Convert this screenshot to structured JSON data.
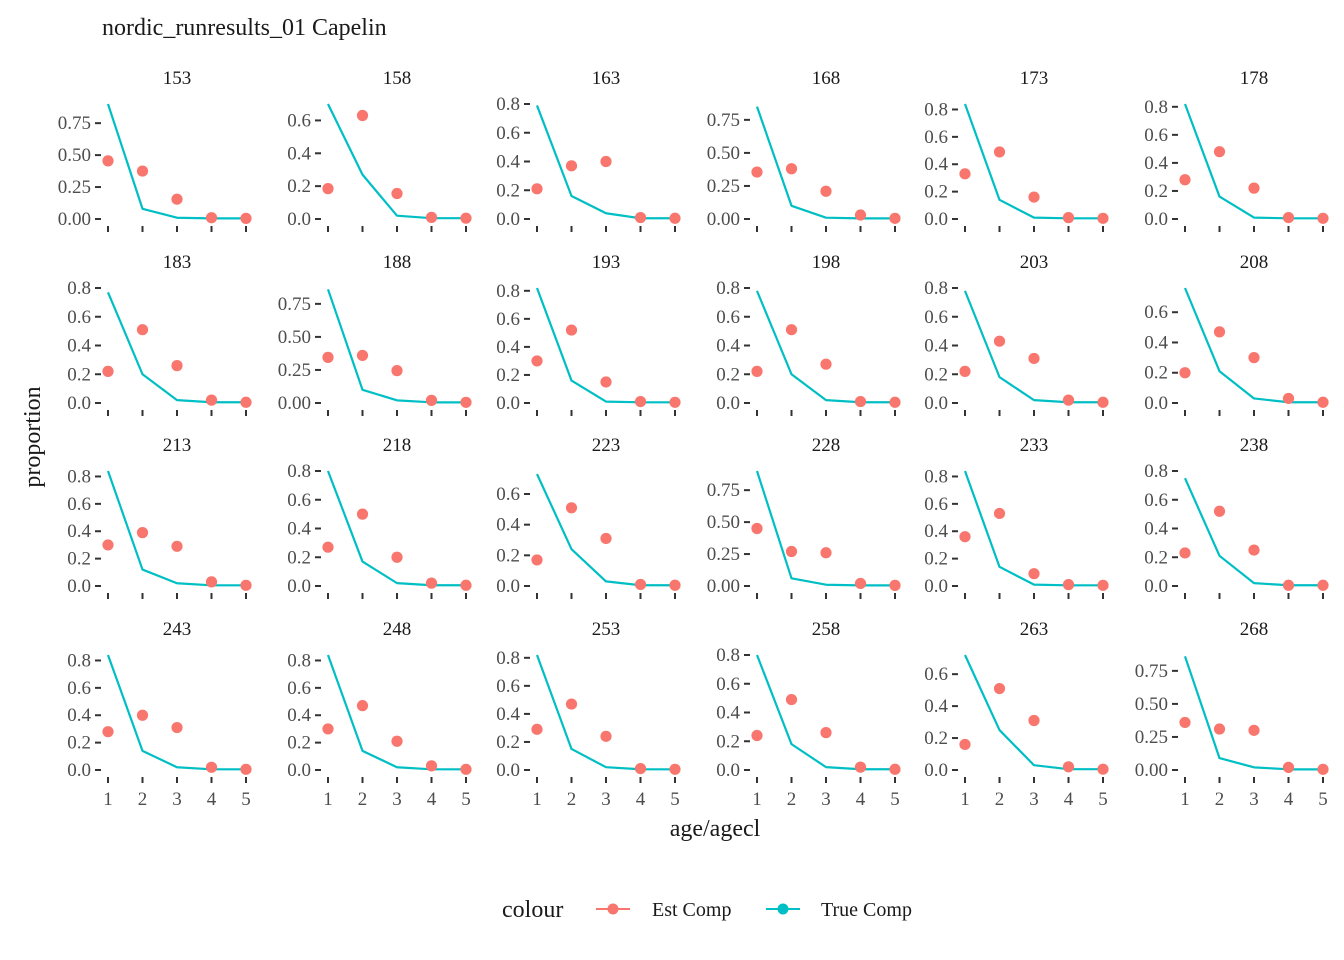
{
  "chart_data": {
    "type": "line",
    "title": "nordic_runresults_01 Capelin",
    "xlabel": "age/agecl",
    "ylabel": "proportion",
    "x": [
      1,
      2,
      3,
      4,
      5
    ],
    "x_ticks": [
      "1",
      "2",
      "3",
      "4",
      "5"
    ],
    "layout": {
      "rows": 4,
      "cols": 6,
      "scales": "free_y"
    },
    "grid": false,
    "legend": {
      "title": "colour",
      "placement": "bottom",
      "entries": [
        {
          "name": "Est Comp",
          "color": "#F8766D",
          "mark": "point"
        },
        {
          "name": "True Comp",
          "color": "#00BFC4",
          "mark": "line"
        }
      ]
    },
    "series_colors": {
      "est": "#F8766D",
      "true": "#00BFC4"
    },
    "panels": [
      {
        "label": "153",
        "ylim": [
          0,
          0.9
        ],
        "yticks": [
          "0.00",
          "0.25",
          "0.50",
          "0.75"
        ],
        "ytick_values": [
          0,
          0.25,
          0.5,
          0.75
        ],
        "est": [
          0.455,
          0.375,
          0.155,
          0.01,
          0.005
        ],
        "true": [
          0.9,
          0.08,
          0.01,
          0.005,
          0.005
        ]
      },
      {
        "label": "158",
        "ylim": [
          0,
          0.7
        ],
        "yticks": [
          "0.0",
          "0.2",
          "0.4",
          "0.6"
        ],
        "ytick_values": [
          0,
          0.2,
          0.4,
          0.6
        ],
        "est": [
          0.185,
          0.63,
          0.155,
          0.01,
          0.005
        ],
        "true": [
          0.7,
          0.27,
          0.02,
          0.005,
          0.005
        ]
      },
      {
        "label": "163",
        "ylim": [
          0,
          0.8
        ],
        "yticks": [
          "0.0",
          "0.2",
          "0.4",
          "0.6",
          "0.8"
        ],
        "ytick_values": [
          0,
          0.2,
          0.4,
          0.6,
          0.8
        ],
        "est": [
          0.21,
          0.37,
          0.4,
          0.01,
          0.005
        ],
        "true": [
          0.79,
          0.16,
          0.04,
          0.005,
          0.005
        ]
      },
      {
        "label": "168",
        "ylim": [
          0,
          0.87
        ],
        "yticks": [
          "0.00",
          "0.25",
          "0.50",
          "0.75"
        ],
        "ytick_values": [
          0,
          0.25,
          0.5,
          0.75
        ],
        "est": [
          0.355,
          0.38,
          0.21,
          0.03,
          0.005
        ],
        "true": [
          0.85,
          0.1,
          0.01,
          0.005,
          0.005
        ]
      },
      {
        "label": "173",
        "ylim": [
          0,
          0.84
        ],
        "yticks": [
          "0.0",
          "0.2",
          "0.4",
          "0.6",
          "0.8"
        ],
        "ytick_values": [
          0,
          0.2,
          0.4,
          0.6,
          0.8
        ],
        "est": [
          0.33,
          0.49,
          0.16,
          0.01,
          0.005
        ],
        "true": [
          0.84,
          0.14,
          0.01,
          0.005,
          0.005
        ]
      },
      {
        "label": "178",
        "ylim": [
          0,
          0.82
        ],
        "yticks": [
          "0.0",
          "0.2",
          "0.4",
          "0.6",
          "0.8"
        ],
        "ytick_values": [
          0,
          0.2,
          0.4,
          0.6,
          0.8
        ],
        "est": [
          0.28,
          0.48,
          0.22,
          0.01,
          0.005
        ],
        "true": [
          0.82,
          0.16,
          0.01,
          0.005,
          0.005
        ]
      },
      {
        "label": "183",
        "ylim": [
          0,
          0.8
        ],
        "yticks": [
          "0.0",
          "0.2",
          "0.4",
          "0.6",
          "0.8"
        ],
        "ytick_values": [
          0,
          0.2,
          0.4,
          0.6,
          0.8
        ],
        "est": [
          0.22,
          0.51,
          0.26,
          0.02,
          0.005
        ],
        "true": [
          0.77,
          0.2,
          0.02,
          0.005,
          0.005
        ]
      },
      {
        "label": "188",
        "ylim": [
          0,
          0.87
        ],
        "yticks": [
          "0.00",
          "0.25",
          "0.50",
          "0.75"
        ],
        "ytick_values": [
          0,
          0.25,
          0.5,
          0.75
        ],
        "est": [
          0.345,
          0.36,
          0.245,
          0.02,
          0.005
        ],
        "true": [
          0.86,
          0.1,
          0.02,
          0.005,
          0.005
        ]
      },
      {
        "label": "193",
        "ylim": [
          0,
          0.82
        ],
        "yticks": [
          "0.0",
          "0.2",
          "0.4",
          "0.6",
          "0.8"
        ],
        "ytick_values": [
          0,
          0.2,
          0.4,
          0.6,
          0.8
        ],
        "est": [
          0.3,
          0.52,
          0.15,
          0.01,
          0.005
        ],
        "true": [
          0.82,
          0.16,
          0.01,
          0.005,
          0.005
        ]
      },
      {
        "label": "198",
        "ylim": [
          0,
          0.8
        ],
        "yticks": [
          "0.0",
          "0.2",
          "0.4",
          "0.6",
          "0.8"
        ],
        "ytick_values": [
          0,
          0.2,
          0.4,
          0.6,
          0.8
        ],
        "est": [
          0.22,
          0.51,
          0.27,
          0.01,
          0.005
        ],
        "true": [
          0.78,
          0.2,
          0.02,
          0.005,
          0.005
        ]
      },
      {
        "label": "203",
        "ylim": [
          0,
          0.8
        ],
        "yticks": [
          "0.0",
          "0.2",
          "0.4",
          "0.6",
          "0.8"
        ],
        "ytick_values": [
          0,
          0.2,
          0.4,
          0.6,
          0.8
        ],
        "est": [
          0.22,
          0.43,
          0.31,
          0.02,
          0.005
        ],
        "true": [
          0.78,
          0.18,
          0.02,
          0.005,
          0.005
        ]
      },
      {
        "label": "208",
        "ylim": [
          0,
          0.76
        ],
        "yticks": [
          "0.0",
          "0.2",
          "0.4",
          "0.6"
        ],
        "ytick_values": [
          0,
          0.2,
          0.4,
          0.6
        ],
        "est": [
          0.2,
          0.47,
          0.3,
          0.03,
          0.005
        ],
        "true": [
          0.76,
          0.21,
          0.03,
          0.005,
          0.005
        ]
      },
      {
        "label": "213",
        "ylim": [
          0,
          0.84
        ],
        "yticks": [
          "0.0",
          "0.2",
          "0.4",
          "0.6",
          "0.8"
        ],
        "ytick_values": [
          0,
          0.2,
          0.4,
          0.6,
          0.8
        ],
        "est": [
          0.3,
          0.39,
          0.29,
          0.03,
          0.005
        ],
        "true": [
          0.84,
          0.12,
          0.02,
          0.005,
          0.005
        ]
      },
      {
        "label": "218",
        "ylim": [
          0,
          0.8
        ],
        "yticks": [
          "0.0",
          "0.2",
          "0.4",
          "0.6",
          "0.8"
        ],
        "ytick_values": [
          0,
          0.2,
          0.4,
          0.6,
          0.8
        ],
        "est": [
          0.27,
          0.5,
          0.2,
          0.02,
          0.005
        ],
        "true": [
          0.8,
          0.17,
          0.02,
          0.005,
          0.005
        ]
      },
      {
        "label": "223",
        "ylim": [
          0,
          0.75
        ],
        "yticks": [
          "0.0",
          "0.2",
          "0.4",
          "0.6"
        ],
        "ytick_values": [
          0,
          0.2,
          0.4,
          0.6
        ],
        "est": [
          0.17,
          0.51,
          0.31,
          0.01,
          0.005
        ],
        "true": [
          0.73,
          0.24,
          0.03,
          0.005,
          0.005
        ]
      },
      {
        "label": "228",
        "ylim": [
          0,
          0.9
        ],
        "yticks": [
          "0.00",
          "0.25",
          "0.50",
          "0.75"
        ],
        "ytick_values": [
          0,
          0.25,
          0.5,
          0.75
        ],
        "est": [
          0.45,
          0.27,
          0.26,
          0.02,
          0.005
        ],
        "true": [
          0.9,
          0.06,
          0.01,
          0.005,
          0.005
        ]
      },
      {
        "label": "233",
        "ylim": [
          0,
          0.84
        ],
        "yticks": [
          "0.0",
          "0.2",
          "0.4",
          "0.6",
          "0.8"
        ],
        "ytick_values": [
          0,
          0.2,
          0.4,
          0.6,
          0.8
        ],
        "est": [
          0.36,
          0.53,
          0.09,
          0.01,
          0.005
        ],
        "true": [
          0.84,
          0.14,
          0.01,
          0.005,
          0.005
        ]
      },
      {
        "label": "238",
        "ylim": [
          0,
          0.8
        ],
        "yticks": [
          "0.0",
          "0.2",
          "0.4",
          "0.6",
          "0.8"
        ],
        "ytick_values": [
          0,
          0.2,
          0.4,
          0.6,
          0.8
        ],
        "est": [
          0.23,
          0.52,
          0.25,
          0.005,
          0.005
        ],
        "true": [
          0.75,
          0.21,
          0.02,
          0.005,
          0.005
        ]
      },
      {
        "label": "243",
        "ylim": [
          0,
          0.84
        ],
        "yticks": [
          "0.0",
          "0.2",
          "0.4",
          "0.6",
          "0.8"
        ],
        "ytick_values": [
          0,
          0.2,
          0.4,
          0.6,
          0.8
        ],
        "est": [
          0.28,
          0.4,
          0.31,
          0.02,
          0.005
        ],
        "true": [
          0.84,
          0.14,
          0.02,
          0.005,
          0.005
        ]
      },
      {
        "label": "248",
        "ylim": [
          0,
          0.84
        ],
        "yticks": [
          "0.0",
          "0.2",
          "0.4",
          "0.6",
          "0.8"
        ],
        "ytick_values": [
          0,
          0.2,
          0.4,
          0.6,
          0.8
        ],
        "est": [
          0.3,
          0.47,
          0.21,
          0.03,
          0.005
        ],
        "true": [
          0.84,
          0.14,
          0.02,
          0.005,
          0.005
        ]
      },
      {
        "label": "253",
        "ylim": [
          0,
          0.82
        ],
        "yticks": [
          "0.0",
          "0.2",
          "0.4",
          "0.6",
          "0.8"
        ],
        "ytick_values": [
          0,
          0.2,
          0.4,
          0.6,
          0.8
        ],
        "est": [
          0.29,
          0.47,
          0.24,
          0.01,
          0.005
        ],
        "true": [
          0.82,
          0.15,
          0.02,
          0.005,
          0.005
        ]
      },
      {
        "label": "258",
        "ylim": [
          0,
          0.8
        ],
        "yticks": [
          "0.0",
          "0.2",
          "0.4",
          "0.6",
          "0.8"
        ],
        "ytick_values": [
          0,
          0.2,
          0.4,
          0.6,
          0.8
        ],
        "est": [
          0.24,
          0.49,
          0.26,
          0.02,
          0.005
        ],
        "true": [
          0.8,
          0.18,
          0.02,
          0.005,
          0.005
        ]
      },
      {
        "label": "263",
        "ylim": [
          0,
          0.72
        ],
        "yticks": [
          "0.0",
          "0.2",
          "0.4",
          "0.6"
        ],
        "ytick_values": [
          0,
          0.2,
          0.4,
          0.6
        ],
        "est": [
          0.16,
          0.51,
          0.31,
          0.02,
          0.005
        ],
        "true": [
          0.72,
          0.25,
          0.03,
          0.005,
          0.005
        ]
      },
      {
        "label": "268",
        "ylim": [
          0,
          0.87
        ],
        "yticks": [
          "0.00",
          "0.25",
          "0.50",
          "0.75"
        ],
        "ytick_values": [
          0,
          0.25,
          0.5,
          0.75
        ],
        "est": [
          0.36,
          0.31,
          0.3,
          0.02,
          0.005
        ],
        "true": [
          0.86,
          0.09,
          0.02,
          0.005,
          0.005
        ]
      }
    ]
  }
}
